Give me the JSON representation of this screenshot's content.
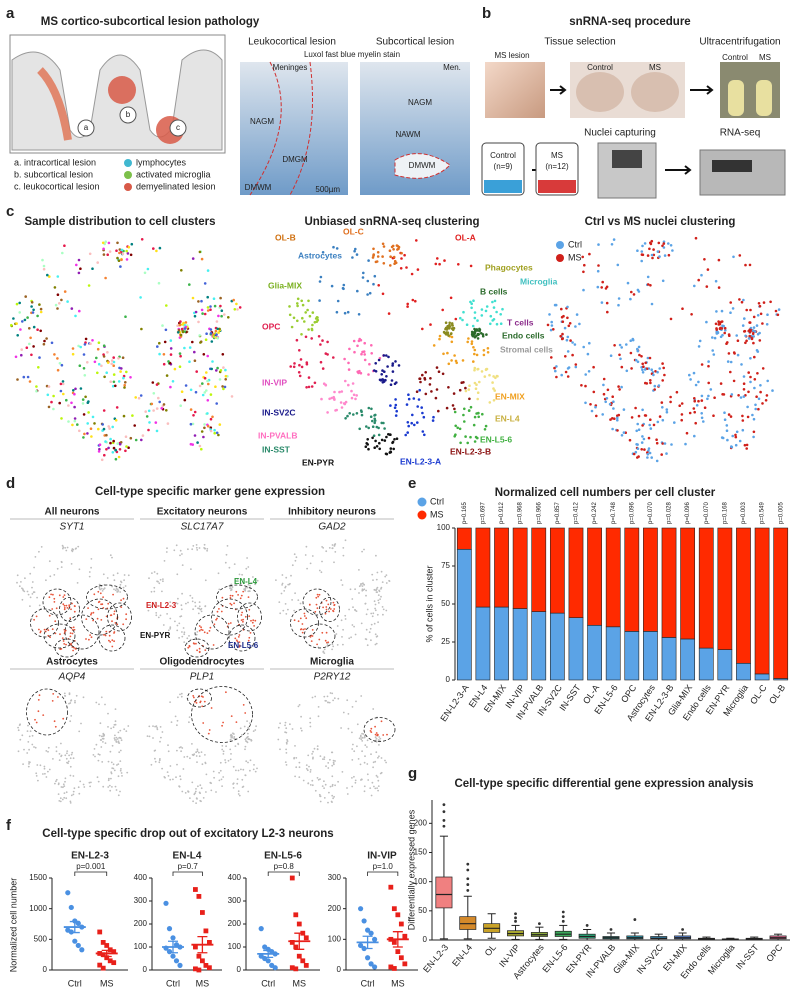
{
  "panels": {
    "a": {
      "label": "a",
      "title": "MS cortico-subcortical lesion pathology",
      "lesion_titles": [
        "Leukocortical lesion",
        "Subcortical lesion"
      ],
      "stain": "Luxol fast blue myelin stain",
      "left_image_labels": [
        "Meninges",
        "NAGM",
        "DMGM",
        "DMWM"
      ],
      "right_image_labels": [
        "Men.",
        "NAGM",
        "NAWM",
        "DMWM"
      ],
      "scale_bar": "500µm",
      "diagram_labels": [
        "a",
        "b",
        "c"
      ],
      "legend": [
        "a. intracortical lesion",
        "b. subcortical lesion",
        "c. leukocortical lesion",
        "lymphocytes",
        "activated microglia",
        "demyelinated lesion"
      ]
    },
    "b": {
      "label": "b",
      "title": "snRNA-seq procedure",
      "steps": [
        "Tissue selection",
        "Ultracentrifugation",
        "Nuclei capturing",
        "RNA-seq"
      ],
      "photo_labels": [
        "MS lesion",
        "Control",
        "MS",
        "Control",
        "MS"
      ],
      "tubes": [
        "Control",
        "(n=9)",
        "MS",
        "(n=12)"
      ]
    },
    "c": {
      "label": "c",
      "titles": [
        "Sample distribution to cell clusters",
        "Unbiased snRNA-seq clustering",
        "Ctrl vs MS nuclei clustering"
      ],
      "cluster_labels": [
        "OL-B",
        "OL-C",
        "OL-A",
        "Astrocytes",
        "Glia-MIX",
        "Phagocytes",
        "Microglia",
        "B cells",
        "T cells",
        "Endo cells",
        "Stromal cells",
        "OPC",
        "IN-VIP",
        "IN-SV2C",
        "IN-PVALB",
        "IN-SST",
        "EN-PYR",
        "EN-L2-3-A",
        "EN-L2-3-B",
        "EN-L5-6",
        "EN-L4",
        "EN-MIX"
      ],
      "legend": [
        "Ctrl",
        "MS"
      ]
    },
    "d": {
      "label": "d",
      "title": "Cell-type specific marker gene expression",
      "cells": [
        [
          "All neurons",
          "SYT1"
        ],
        [
          "Excitatory neurons",
          "SLC17A7"
        ],
        [
          "Inhibitory neurons",
          "GAD2"
        ],
        [
          "Astrocytes",
          "AQP4"
        ],
        [
          "Oligodendrocytes",
          "PLP1"
        ],
        [
          "Microglia",
          "P2RY12"
        ]
      ],
      "region_labels": [
        "EN-L4",
        "EN-L2-3",
        "EN-PYR",
        "EN-L5-6"
      ]
    },
    "e": {
      "label": "e"
    },
    "f": {
      "label": "f",
      "title": "Cell-type specific drop out of excitatory L2-3 neurons",
      "y_label": "Normalized cell number"
    },
    "g": {
      "label": "g"
    }
  },
  "chart_data": [
    {
      "type": "bar",
      "stacked": true,
      "title": "Normalized cell numbers per cell cluster",
      "y_label": "% of cells in cluster",
      "categories": [
        "EN-L2-3-A",
        "EN-L4",
        "EN-MIX",
        "IN-VIP",
        "IN-PVALB",
        "IN-SV2C",
        "IN-SST",
        "OL-A",
        "EN-L5-6",
        "OPC",
        "Astrocytes",
        "EN-L2-3-B",
        "Glia-MIX",
        "Endo cells",
        "EN-PYR",
        "Microglia",
        "OL-C",
        "OL-B"
      ],
      "series": [
        {
          "name": "Ctrl",
          "color": "#5ba3e6",
          "values": [
            86,
            48,
            48,
            47,
            45,
            44,
            41,
            36,
            35,
            32,
            32,
            28,
            27,
            21,
            20,
            11,
            4,
            1
          ]
        },
        {
          "name": "MS",
          "color": "#ff2a00",
          "values": [
            14,
            52,
            52,
            53,
            55,
            56,
            59,
            64,
            65,
            68,
            68,
            72,
            73,
            79,
            80,
            89,
            96,
            99
          ]
        }
      ],
      "annotations": [
        "p=0.165",
        "p=0.697",
        "p=0.912",
        "p=0.968",
        "p=0.966",
        "p=0.857",
        "p=0.412",
        "p=0.242",
        "p=0.748",
        "p=0.096",
        "p=0.070",
        "p=0.028",
        "p=0.096",
        "p=0.070",
        "p=0.168",
        "p=0.003",
        "p=0.549",
        "p=0.005"
      ],
      "ylim": [
        0,
        100
      ],
      "yticks": [
        0,
        25,
        50,
        75,
        100
      ]
    },
    {
      "type": "dot",
      "title": "EN-L2-3",
      "categories": [
        "Ctrl",
        "MS"
      ],
      "colors": [
        "#4a90e2",
        "#e8201a"
      ],
      "p_label": "p=0.001",
      "groups": [
        {
          "values": [
            1260,
            1020,
            800,
            760,
            700,
            650,
            620,
            470,
            400,
            330
          ],
          "mean": 700,
          "sem": 90
        },
        {
          "values": [
            620,
            450,
            400,
            330,
            300,
            270,
            250,
            200,
            150,
            120,
            80,
            30
          ],
          "mean": 270,
          "sem": 50
        }
      ],
      "ylim": [
        0,
        1500
      ],
      "yticks": [
        0,
        500,
        1000,
        1500
      ]
    },
    {
      "type": "dot",
      "title": "EN-L4",
      "categories": [
        "Ctrl",
        "MS"
      ],
      "colors": [
        "#4a90e2",
        "#e8201a"
      ],
      "p_label": "p=0.7",
      "groups": [
        {
          "values": [
            290,
            180,
            140,
            110,
            100,
            95,
            80,
            60,
            40,
            20
          ],
          "mean": 100,
          "sem": 25
        },
        {
          "values": [
            350,
            320,
            250,
            170,
            120,
            100,
            60,
            40,
            20,
            10,
            5,
            0
          ],
          "mean": 110,
          "sem": 35
        }
      ],
      "ylim": [
        0,
        400
      ],
      "yticks": [
        0,
        100,
        200,
        300,
        400
      ]
    },
    {
      "type": "dot",
      "title": "EN-L5-6",
      "categories": [
        "Ctrl",
        "MS"
      ],
      "colors": [
        "#4a90e2",
        "#e8201a"
      ],
      "p_label": "p=0.8",
      "groups": [
        {
          "values": [
            180,
            100,
            90,
            80,
            70,
            60,
            50,
            40,
            20,
            10
          ],
          "mean": 70,
          "sem": 15
        },
        {
          "values": [
            400,
            240,
            200,
            160,
            140,
            120,
            100,
            60,
            40,
            20,
            10,
            5
          ],
          "mean": 125,
          "sem": 35
        }
      ],
      "ylim": [
        0,
        400
      ],
      "yticks": [
        0,
        100,
        200,
        300,
        400
      ]
    },
    {
      "type": "dot",
      "title": "IN-VIP",
      "categories": [
        "Ctrl",
        "MS"
      ],
      "colors": [
        "#4a90e2",
        "#e8201a"
      ],
      "p_label": "p=1.0",
      "groups": [
        {
          "values": [
            200,
            160,
            130,
            120,
            100,
            80,
            70,
            40,
            20,
            10
          ],
          "mean": 90,
          "sem": 20
        },
        {
          "values": [
            270,
            200,
            180,
            150,
            110,
            100,
            90,
            60,
            40,
            20,
            10,
            5
          ],
          "mean": 100,
          "sem": 25
        }
      ],
      "ylim": [
        0,
        300
      ],
      "yticks": [
        0,
        100,
        200,
        300
      ]
    },
    {
      "type": "box",
      "title": "Cell-type specific differential gene expression analysis",
      "y_label": "Differentially expressed genes",
      "categories": [
        "EN-L2-3",
        "EN-L4",
        "OL",
        "IN-VIP",
        "Astrocytes",
        "EN-L5-6",
        "EN-PYR",
        "IN-PVALB",
        "Glia-MIX",
        "IN-SV2C",
        "EN-MIX",
        "Endo cells",
        "Microglia",
        "IN-SST",
        "OPC"
      ],
      "boxes": [
        {
          "low": 2,
          "q1": 55,
          "median": 78,
          "q3": 108,
          "high": 178,
          "outliers": [
            195,
            205,
            220,
            232
          ],
          "color": "#f08080"
        },
        {
          "low": 2,
          "q1": 18,
          "median": 28,
          "q3": 40,
          "high": 75,
          "outliers": [
            85,
            95,
            105,
            120,
            130
          ],
          "color": "#d4892a"
        },
        {
          "low": 3,
          "q1": 13,
          "median": 20,
          "q3": 28,
          "high": 45,
          "outliers": [],
          "color": "#c9a227"
        },
        {
          "low": 1,
          "q1": 7,
          "median": 11,
          "q3": 16,
          "high": 25,
          "outliers": [
            32,
            38,
            45
          ],
          "color": "#a8a830"
        },
        {
          "low": 1,
          "q1": 6,
          "median": 9,
          "q3": 13,
          "high": 22,
          "outliers": [
            28
          ],
          "color": "#8aa83a"
        },
        {
          "low": 1,
          "q1": 6,
          "median": 10,
          "q3": 15,
          "high": 25,
          "outliers": [
            32,
            40,
            48
          ],
          "color": "#3aa85a"
        },
        {
          "low": 0,
          "q1": 3,
          "median": 6,
          "q3": 10,
          "high": 18,
          "outliers": [
            25
          ],
          "color": "#2aa87a"
        },
        {
          "low": 0,
          "q1": 2,
          "median": 4,
          "q3": 6,
          "high": 12,
          "outliers": [
            18
          ],
          "color": "#2aa8a0"
        },
        {
          "low": 0,
          "q1": 2,
          "median": 4,
          "q3": 7,
          "high": 12,
          "outliers": [
            35
          ],
          "color": "#2aa0b8"
        },
        {
          "low": 0,
          "q1": 2,
          "median": 3,
          "q3": 6,
          "high": 10,
          "outliers": [],
          "color": "#3a98c8"
        },
        {
          "low": 0,
          "q1": 2,
          "median": 4,
          "q3": 7,
          "high": 12,
          "outliers": [
            18
          ],
          "color": "#5a88d8"
        },
        {
          "low": 0,
          "q1": 1,
          "median": 2,
          "q3": 3,
          "high": 5,
          "outliers": [],
          "color": "#8a78d8"
        },
        {
          "low": 0,
          "q1": 0,
          "median": 1,
          "q3": 2,
          "high": 3,
          "outliers": [],
          "color": "#b068c8"
        },
        {
          "low": 0,
          "q1": 1,
          "median": 2,
          "q3": 3,
          "high": 5,
          "outliers": [],
          "color": "#d060b0"
        },
        {
          "low": 0,
          "q1": 2,
          "median": 4,
          "q3": 7,
          "high": 10,
          "outliers": [],
          "color": "#e06890"
        }
      ],
      "ylim": [
        0,
        240
      ],
      "yticks": [
        0,
        50,
        100,
        150,
        200
      ]
    }
  ]
}
